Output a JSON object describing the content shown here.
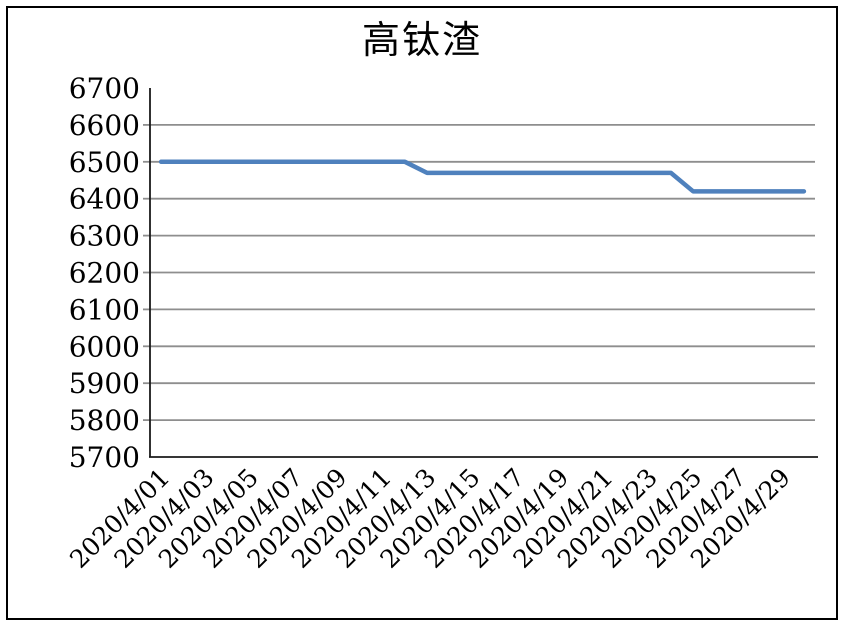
{
  "chart": {
    "title": "高钛渣",
    "colors": {
      "line": "#4F81BD",
      "gridline": "#8E8E8E",
      "axis": "#1A1A1A",
      "text": "#000000",
      "background": "#FFFFFF",
      "border": "#000000"
    }
  },
  "chart_data": {
    "type": "line",
    "title": "高钛渣",
    "x_days": [
      1,
      2,
      3,
      4,
      5,
      6,
      7,
      8,
      9,
      10,
      11,
      12,
      13,
      14,
      15,
      16,
      17,
      18,
      19,
      20,
      21,
      22,
      23,
      24,
      25,
      26,
      27,
      28,
      29,
      30
    ],
    "values": [
      6500,
      6500,
      6500,
      6500,
      6500,
      6500,
      6500,
      6500,
      6500,
      6500,
      6500,
      6500,
      6470,
      6470,
      6470,
      6470,
      6470,
      6470,
      6470,
      6470,
      6470,
      6470,
      6470,
      6470,
      6420,
      6420,
      6420,
      6420,
      6420,
      6420
    ],
    "x_tick_days": [
      1,
      3,
      5,
      7,
      9,
      11,
      13,
      15,
      17,
      19,
      21,
      23,
      25,
      27,
      29
    ],
    "x_tick_labels": [
      "2020/4/01",
      "2020/4/03",
      "2020/4/05",
      "2020/4/07",
      "2020/4/09",
      "2020/4/11",
      "2020/4/13",
      "2020/4/15",
      "2020/4/17",
      "2020/4/19",
      "2020/4/21",
      "2020/4/23",
      "2020/4/25",
      "2020/4/27",
      "2020/4/29"
    ],
    "y_tick_labels": [
      "5700",
      "5800",
      "5900",
      "6000",
      "6100",
      "6200",
      "6300",
      "6400",
      "6500",
      "6600",
      "6700"
    ],
    "ylim": [
      5700,
      6700
    ],
    "y_tick_step": 100,
    "xlabel": "",
    "ylabel": "",
    "grid": true,
    "legend_position": "none"
  }
}
